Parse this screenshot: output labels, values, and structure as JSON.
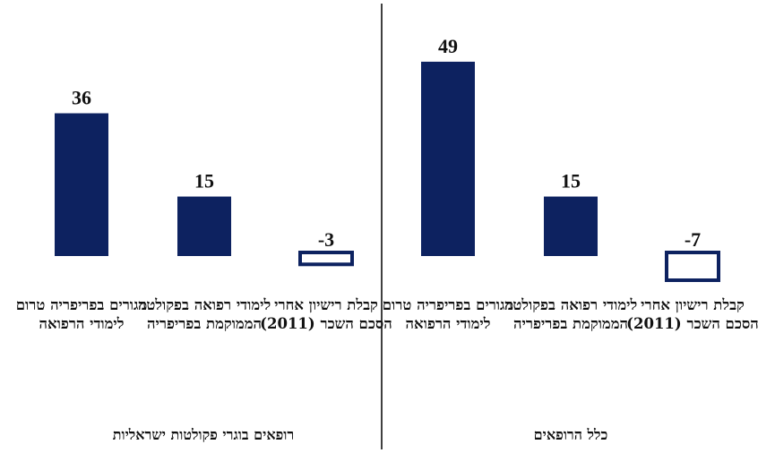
{
  "chart_data": {
    "type": "bar",
    "colors": {
      "bar": "#0d2260",
      "negative_fill": "#ffffff"
    },
    "groups": [
      {
        "name": "כלל הרופאים",
        "categories": [
          "קבלת רישיון אחרי הסכם השכר (2011)",
          "לימודי רפואה בפקולטה הממוקמת בפריפריה",
          "מגורים בפריפריה טרום לימודי הרפואה"
        ],
        "values": [
          -7,
          15,
          49
        ],
        "value_labels": [
          "-7",
          "15",
          "49"
        ]
      },
      {
        "name": "רופאים בוגרי פקולטות ישראליות",
        "categories": [
          "קבלת רישיון אחרי הסכם השכר (2011)",
          "לימודי רפואה בפקולטה הממוקמת בפריפריה",
          "מגורים בפריפריה טרום לימודי הרפואה"
        ],
        "values": [
          -3,
          15,
          36
        ],
        "value_labels": [
          "-3",
          "15",
          "36"
        ]
      }
    ]
  }
}
